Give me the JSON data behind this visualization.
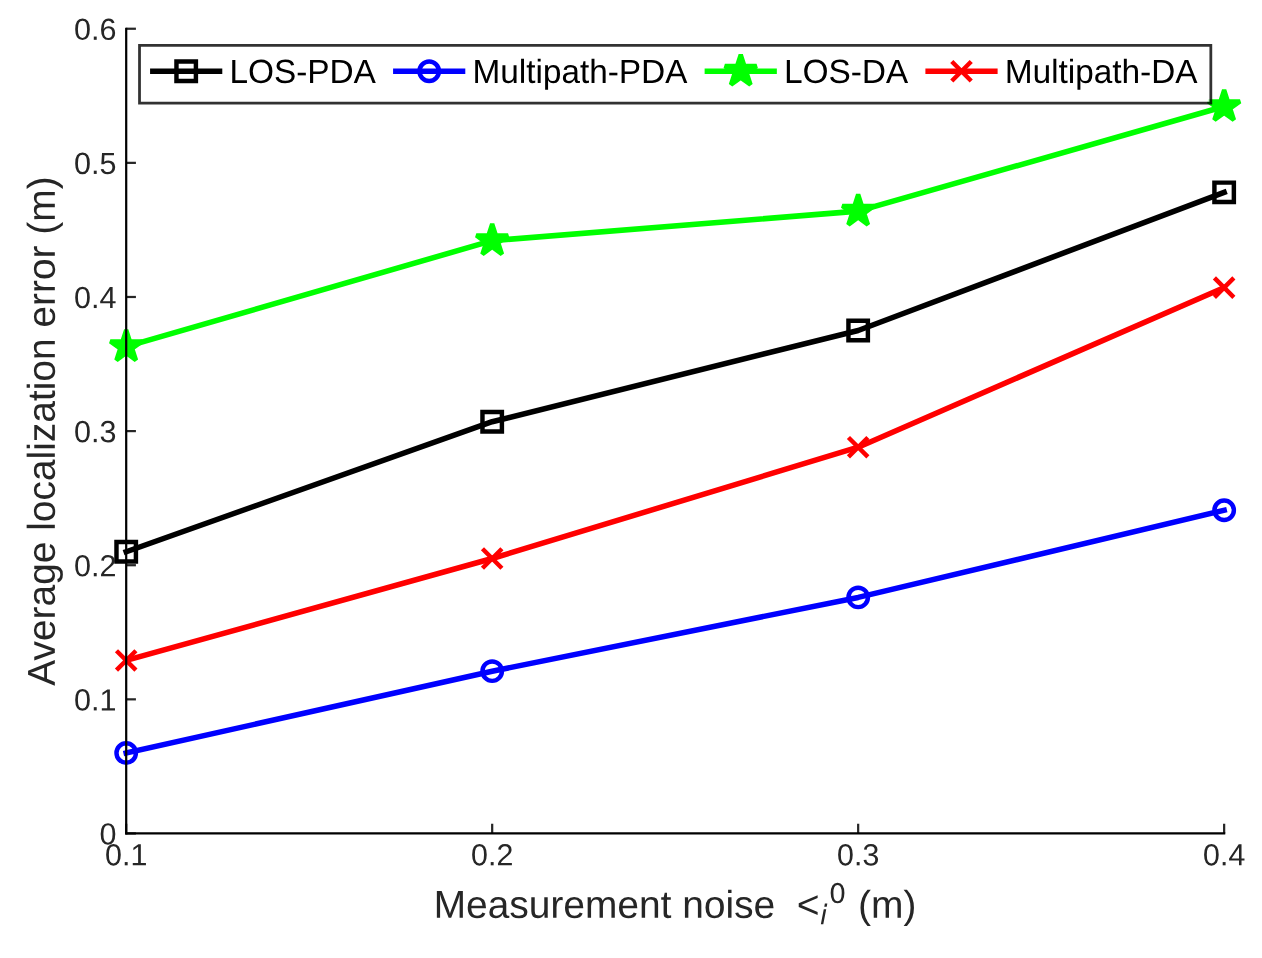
{
  "chart_data": {
    "type": "line",
    "xlabel": "Measurement noise  <$_{i}$$^{0}$ (m)",
    "ylabel": "Average localization error (m)",
    "x": [
      0.1,
      0.2,
      0.3,
      0.4
    ],
    "series": [
      {
        "name": "LOS-PDA",
        "color": "#000000",
        "marker": "square",
        "values": [
          0.21,
          0.307,
          0.375,
          0.478
        ]
      },
      {
        "name": "Multipath-PDA",
        "color": "#0000ff",
        "marker": "circle",
        "values": [
          0.06,
          0.121,
          0.176,
          0.241
        ]
      },
      {
        "name": "LOS-DA",
        "color": "#00ff00",
        "marker": "star",
        "values": [
          0.363,
          0.442,
          0.464,
          0.542
        ]
      },
      {
        "name": "Multipath-DA",
        "color": "#ff0000",
        "marker": "cross",
        "values": [
          0.129,
          0.205,
          0.288,
          0.407
        ]
      }
    ],
    "xlim": [
      0.1,
      0.4
    ],
    "xticks": [
      0.1,
      0.2,
      0.3,
      0.4
    ],
    "ylim": [
      0,
      0.6
    ],
    "yticks": [
      0,
      0.1,
      0.2,
      0.3,
      0.4,
      0.5,
      0.6
    ],
    "grid": false,
    "legend": "top",
    "line_style": "solid"
  }
}
